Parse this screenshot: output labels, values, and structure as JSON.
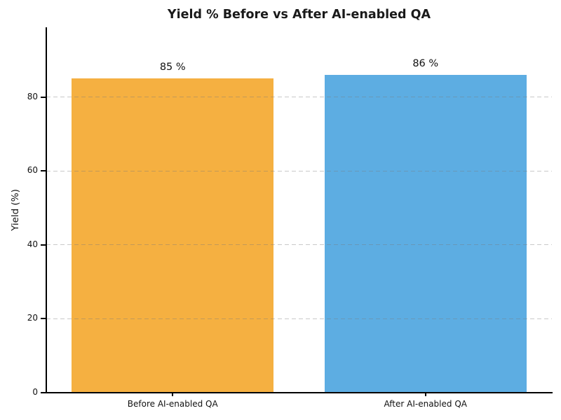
{
  "chart_data": {
    "type": "bar",
    "title": "Yield % Before vs After AI-enabled QA",
    "categories": [
      "Before AI-enabled QA",
      "After AI-enabled QA"
    ],
    "values": [
      85,
      86
    ],
    "value_labels": [
      "85 %",
      "86 %"
    ],
    "bar_colors": [
      "#f5b041",
      "#5dade2"
    ],
    "xlabel": "",
    "ylabel": "Yield (%)",
    "ylim": [
      0,
      98.9
    ],
    "yticks": [
      0,
      20,
      40,
      60,
      80
    ],
    "bar_width_frac": 0.8,
    "grid": {
      "axis": "y",
      "style": "dashed",
      "color": "#c0c0c0"
    },
    "legend": null,
    "colors": {
      "axis": "#000000",
      "title_text": "#1a1a1a",
      "tick_text": "#111111"
    }
  }
}
